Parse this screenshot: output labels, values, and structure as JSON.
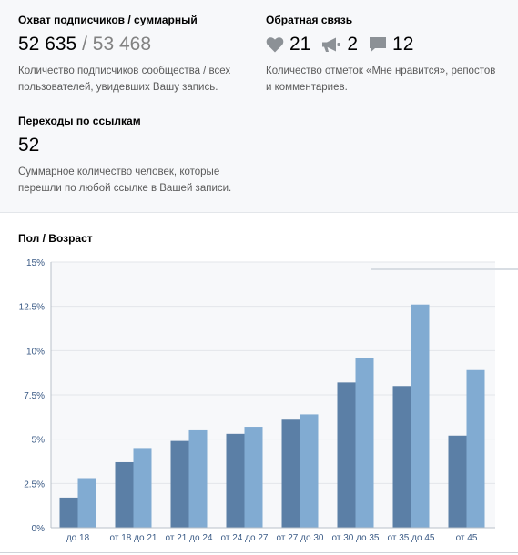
{
  "reach": {
    "title": "Охват подписчиков / суммарный",
    "subscribers": "52 635",
    "separator": "/",
    "total": "53 468",
    "description_line1": "Количество подписчиков сообщества / всех",
    "description_line2": "пользователей, увидевших Вашу запись."
  },
  "feedback": {
    "title": "Обратная связь",
    "likes": "21",
    "reposts": "2",
    "comments": "12",
    "icons": [
      "heart-icon",
      "megaphone-icon",
      "comment-icon"
    ],
    "description_line1": "Количество отметок «Мне нравится», репостов",
    "description_line2": "и комментариев."
  },
  "clicks": {
    "title": "Переходы по ссылкам",
    "count": "52",
    "description_line1": "Суммарное количество человек, которые",
    "description_line2": "перешли по любой ссылке в Вашей записи."
  },
  "chart_title": "Пол / Возраст",
  "colors": {
    "series_dark": "#5b7fa6",
    "series_light": "#81abd2",
    "plot_bg": "#f7f8fa",
    "grid": "#e3e6ea",
    "axis_text": "#3b5b86"
  },
  "chart_data": {
    "type": "bar",
    "categories": [
      "до 18",
      "от 18 до 21",
      "от 21 до 24",
      "от 24 до 27",
      "от 27 до 30",
      "от 30 до 35",
      "от 35 до 45",
      "от 45"
    ],
    "series": [
      {
        "values": [
          1.7,
          3.7,
          4.9,
          5.3,
          6.1,
          8.2,
          8.0,
          5.2
        ]
      },
      {
        "values": [
          2.8,
          4.5,
          5.5,
          5.7,
          6.4,
          9.6,
          12.6,
          8.9
        ]
      }
    ],
    "yticks": [
      "0%",
      "2.5%",
      "5%",
      "7.5%",
      "10%",
      "12.5%",
      "15%"
    ],
    "ylim": [
      0,
      15
    ],
    "ylabel": "",
    "xlabel": "",
    "grid": true
  }
}
